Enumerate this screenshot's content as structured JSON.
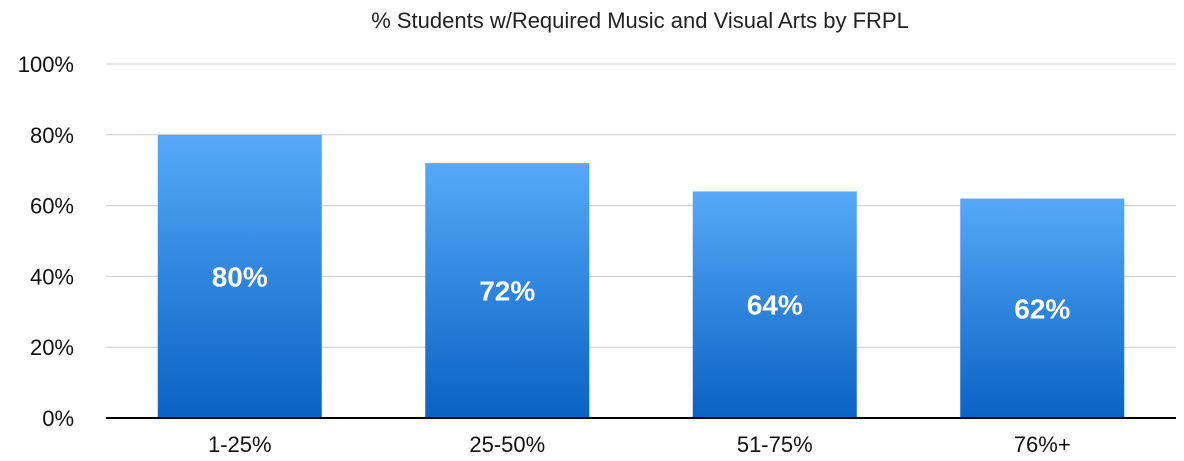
{
  "chart_data": {
    "type": "bar",
    "title": "% Students w/Required Music and Visual Arts by FRPL",
    "xlabel": "",
    "ylabel": "",
    "categories": [
      "1-25%",
      "25-50%",
      "51-75%",
      "76%+"
    ],
    "values": [
      80,
      72,
      64,
      62
    ],
    "data_labels": [
      "80%",
      "72%",
      "64%",
      "62%"
    ],
    "ylim": [
      0,
      100
    ],
    "yticks": [
      0,
      20,
      40,
      60,
      80,
      100
    ],
    "ytick_labels": [
      "0%",
      "20%",
      "40%",
      "60%",
      "80%",
      "100%"
    ],
    "grid": true,
    "legend": "none",
    "colors": {
      "bar_top": "#55a9f7",
      "bar_bottom": "#0a62c4",
      "grid": "#cccccc",
      "axis": "#000000"
    }
  }
}
